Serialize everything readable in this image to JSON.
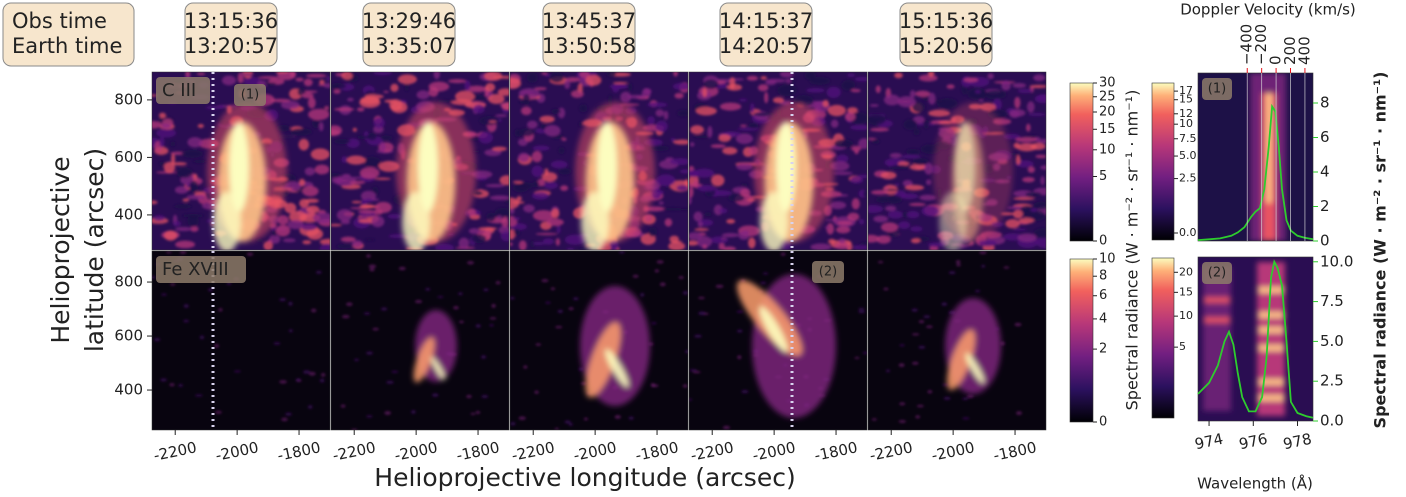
{
  "header": {
    "row_labels": [
      "Obs time",
      "Earth time"
    ],
    "columns": [
      {
        "obs": "13:15:36",
        "earth": "13:20:57"
      },
      {
        "obs": "13:29:46",
        "earth": "13:35:07"
      },
      {
        "obs": "13:45:37",
        "earth": "13:50:58"
      },
      {
        "obs": "14:15:37",
        "earth": "14:20:57"
      },
      {
        "obs": "15:15:36",
        "earth": "15:20:56"
      }
    ]
  },
  "maps": {
    "xlabel": "Helioprojective longitude (arcsec)",
    "ylabel": [
      "Helioprojective",
      "latitude (arcsec)"
    ],
    "xlim": [
      -2275,
      -1700
    ],
    "xticks": [
      -2200,
      -2000,
      -1800
    ],
    "colorbar_label": "Spectral radiance (W · m⁻² · sr⁻¹ · nm⁻¹)",
    "rows": [
      {
        "line": "C III",
        "marker": "(1)",
        "ylim": [
          278,
          897
        ],
        "yticks": [
          400,
          600,
          800
        ],
        "colorbar": {
          "scale": "sqrt",
          "lim": [
            0,
            30
          ],
          "ticks": [
            0,
            5,
            10,
            15,
            20,
            25,
            30
          ]
        }
      },
      {
        "line": "Fe XVIII",
        "marker": "(2)",
        "ylim": [
          252,
          915
        ],
        "yticks": [
          400,
          600,
          800
        ],
        "colorbar": {
          "scale": "sqrt",
          "lim": [
            0,
            10
          ],
          "ticks": [
            0,
            2,
            4,
            6,
            8,
            10
          ]
        }
      }
    ]
  },
  "spectra": {
    "xlabel": "Wavelength (Å)",
    "xlim": [
      973.5,
      978.7
    ],
    "xticks": [
      974,
      976,
      978
    ],
    "velocity_axis": {
      "label": "Doppler Velocity (km/s)",
      "xlim": [
        -1083,
        512
      ],
      "ticks": [
        {
          "value": -400,
          "label": "−400"
        },
        {
          "value": -200,
          "label": "−200"
        },
        0,
        200,
        400
      ],
      "color": "#e8141c"
    },
    "y2label": "Spectral radiance (W · m⁻² · sr⁻¹ · nm⁻¹)",
    "color": "#2ecc2e",
    "panels": [
      {
        "marker": "(1)",
        "y2lim": [
          0,
          9.74
        ],
        "y2ticks": [
          0,
          2,
          4,
          6,
          8
        ],
        "colorbar": {
          "scale": "sqrt",
          "lim": [
            0,
            19
          ],
          "ticks": [
            {
              "value": 0,
              "label": "0.0"
            },
            2.5,
            {
              "value": 5,
              "label": "5.0"
            },
            7.5,
            10,
            12,
            15,
            17
          ]
        },
        "x": [
          973.5,
          974.0,
          974.5,
          975.0,
          975.3,
          975.6,
          975.9,
          976.1,
          976.3,
          976.5,
          976.7,
          976.85,
          977.0,
          977.15,
          977.3,
          977.5,
          977.7,
          978.0,
          978.3,
          978.7
        ],
        "values": [
          0.05,
          0.1,
          0.15,
          0.3,
          0.5,
          0.8,
          1.4,
          1.7,
          1.9,
          3.0,
          5.5,
          7.8,
          7.5,
          5.5,
          3.0,
          1.2,
          0.6,
          0.3,
          0.2,
          0.1
        ]
      },
      {
        "marker": "(2)",
        "y2lim": [
          0,
          10.3
        ],
        "y2ticks": [
          {
            "value": 0,
            "label": "0.0"
          },
          2.5,
          {
            "value": 5,
            "label": "5.0"
          },
          7.5,
          {
            "value": 10,
            "label": "10.0"
          }
        ],
        "colorbar": {
          "scale": "sqrt",
          "lim": [
            0,
            24
          ],
          "ticks": [
            5,
            10,
            15,
            20
          ]
        },
        "x": [
          973.5,
          974.0,
          974.4,
          974.7,
          974.9,
          975.1,
          975.3,
          975.5,
          975.8,
          976.1,
          976.4,
          976.6,
          976.8,
          976.95,
          977.1,
          977.3,
          977.5,
          977.7,
          978.0,
          978.4,
          978.7
        ],
        "values": [
          1.7,
          2.4,
          3.5,
          5.0,
          5.6,
          4.8,
          3.0,
          1.5,
          0.6,
          0.6,
          1.5,
          4.0,
          9.0,
          10.0,
          9.6,
          8.5,
          5.0,
          1.2,
          0.5,
          0.3,
          0.2
        ]
      }
    ]
  }
}
